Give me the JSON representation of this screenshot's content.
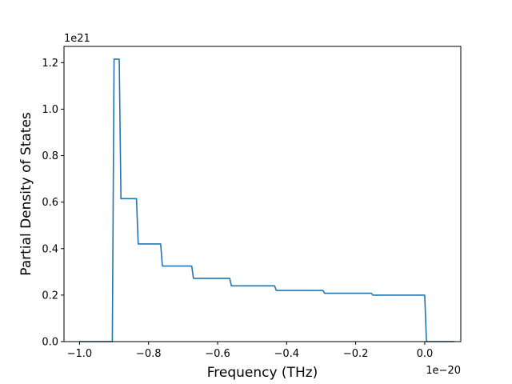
{
  "chart_data": {
    "type": "line",
    "title": "",
    "xlabel": "Frequency (THz)",
    "ylabel": "Partial Density of States",
    "x_offset_text": "1e−20",
    "y_offset_text": "1e21",
    "x_scale": 1e-20,
    "y_scale": 1e+21,
    "xlim": [
      -1.045,
      0.1045
    ],
    "ylim": [
      0.0,
      1.27
    ],
    "xticks": [
      -1.0,
      -0.8,
      -0.6,
      -0.4,
      -0.2,
      0.0
    ],
    "xtick_labels": [
      "−1.0",
      "−0.8",
      "−0.6",
      "−0.4",
      "−0.2",
      "0.0"
    ],
    "yticks": [
      0.0,
      0.2,
      0.4,
      0.6,
      0.8,
      1.0,
      1.2
    ],
    "ytick_labels": [
      "0.0",
      "0.2",
      "0.4",
      "0.6",
      "0.8",
      "1.0",
      "1.2"
    ],
    "grid": false,
    "legend": "none",
    "series": [
      {
        "color": "#1f77b4",
        "x": [
          -1.0,
          -0.905,
          -0.9,
          -0.885,
          -0.88,
          -0.835,
          -0.83,
          -0.765,
          -0.76,
          -0.675,
          -0.67,
          -0.565,
          -0.56,
          -0.435,
          -0.43,
          -0.295,
          -0.29,
          -0.155,
          -0.15,
          0.0,
          0.005,
          0.085
        ],
        "y": [
          0.0,
          0.0,
          1.215,
          1.215,
          0.615,
          0.615,
          0.42,
          0.42,
          0.325,
          0.325,
          0.272,
          0.272,
          0.24,
          0.24,
          0.22,
          0.22,
          0.208,
          0.208,
          0.2,
          0.2,
          0.0,
          0.0
        ]
      }
    ]
  }
}
